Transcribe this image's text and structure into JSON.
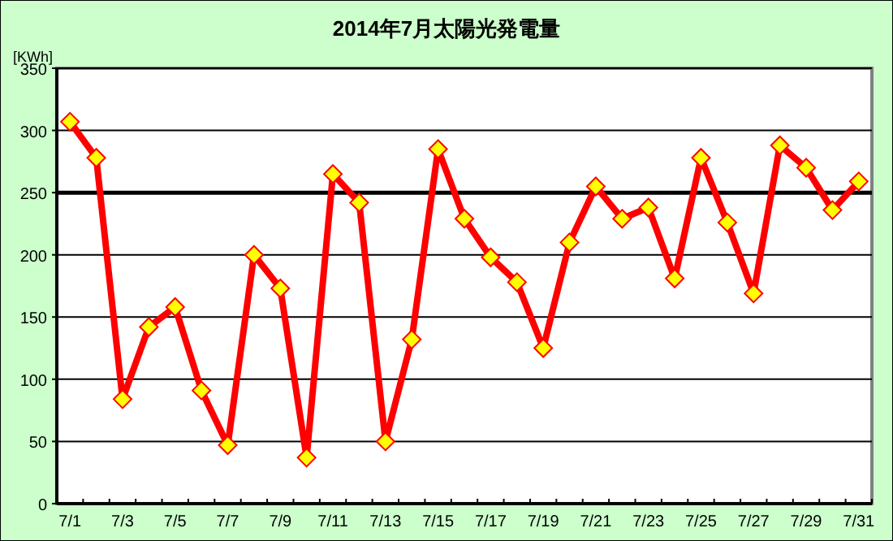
{
  "chart_data": {
    "type": "line",
    "title": "2014年7月太陽光発電量",
    "ylabel": "[KWh]",
    "categories": [
      "7/1",
      null,
      "7/3",
      null,
      "7/5",
      null,
      "7/7",
      null,
      "7/9",
      null,
      "7/11",
      null,
      "7/13",
      null,
      "7/15",
      null,
      "7/17",
      null,
      "7/19",
      null,
      "7/21",
      null,
      "7/23",
      null,
      "7/25",
      null,
      "7/27",
      null,
      "7/29",
      null,
      "7/31"
    ],
    "series": [
      {
        "color": "#ff0000",
        "values": [
          307,
          278,
          84,
          142,
          158,
          91,
          47,
          200,
          173,
          37,
          265,
          242,
          50,
          132,
          285,
          229,
          198,
          178,
          125,
          210,
          255,
          229,
          238,
          181,
          278,
          226,
          169,
          288,
          270,
          236,
          259
        ]
      }
    ],
    "ylim": [
      0,
      350
    ],
    "yticks": [
      0,
      50,
      100,
      150,
      200,
      250,
      300,
      350
    ],
    "grid": "y",
    "marker": "diamond",
    "line_style": "solid",
    "ref_lines": [
      {
        "axis": "y",
        "value": 250,
        "color": "#000000"
      }
    ]
  }
}
